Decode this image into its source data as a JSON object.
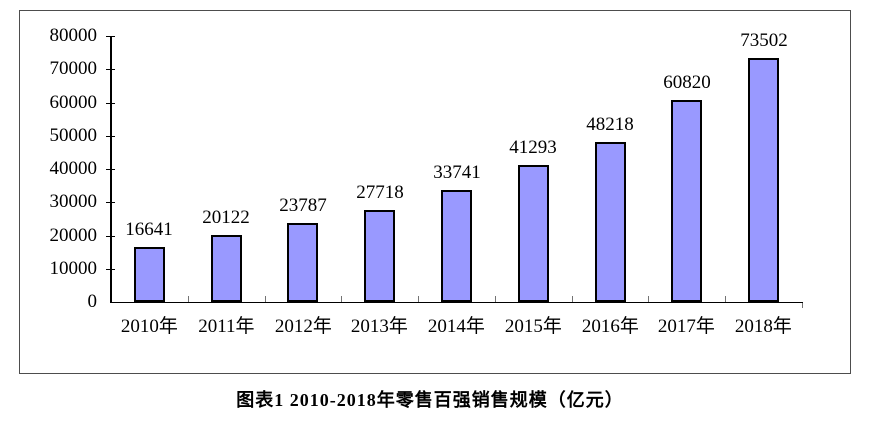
{
  "chart_data": {
    "type": "bar",
    "title": "",
    "categories": [
      "2010年",
      "2011年",
      "2012年",
      "2013年",
      "2014年",
      "2015年",
      "2016年",
      "2017年",
      "2018年"
    ],
    "values": [
      16641,
      20122,
      23787,
      27718,
      33741,
      41293,
      48218,
      60820,
      73502
    ],
    "value_labels": [
      "16641",
      "20122",
      "23787",
      "27718",
      "33741",
      "41293",
      "48218",
      "60820",
      "73502"
    ],
    "xlabel": "",
    "ylabel": "",
    "ylim": [
      0,
      80000
    ],
    "ytick_step": 10000,
    "ytick_labels": [
      "0",
      "10000",
      "20000",
      "30000",
      "40000",
      "50000",
      "60000",
      "70000",
      "80000"
    ],
    "grid": false,
    "legend": "none",
    "colors": {
      "bar_fill": "#9999FF",
      "bar_border": "#000000"
    }
  },
  "caption": {
    "text": "图表1  2010-2018年零售百强销售规模（亿元）"
  }
}
